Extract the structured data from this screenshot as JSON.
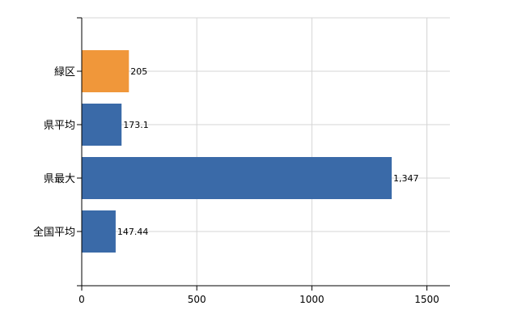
{
  "chart_data": {
    "type": "bar",
    "orientation": "horizontal",
    "categories": [
      "緑区",
      "県平均",
      "県最大",
      "全国平均"
    ],
    "values": [
      205,
      173.1,
      1347,
      147.44
    ],
    "value_labels": [
      "205",
      "173.1",
      "1,347",
      "147.44"
    ],
    "bar_colors": [
      "#f0973a",
      "#3a6aa8",
      "#3a6aa8",
      "#3a6aa8"
    ],
    "xlim": [
      0,
      1600
    ],
    "x_ticks": [
      0,
      500,
      1000,
      1500
    ],
    "x_tick_labels": [
      "0",
      "500",
      "1000",
      "1500"
    ],
    "grid": true,
    "title": "",
    "xlabel": "",
    "ylabel": ""
  }
}
